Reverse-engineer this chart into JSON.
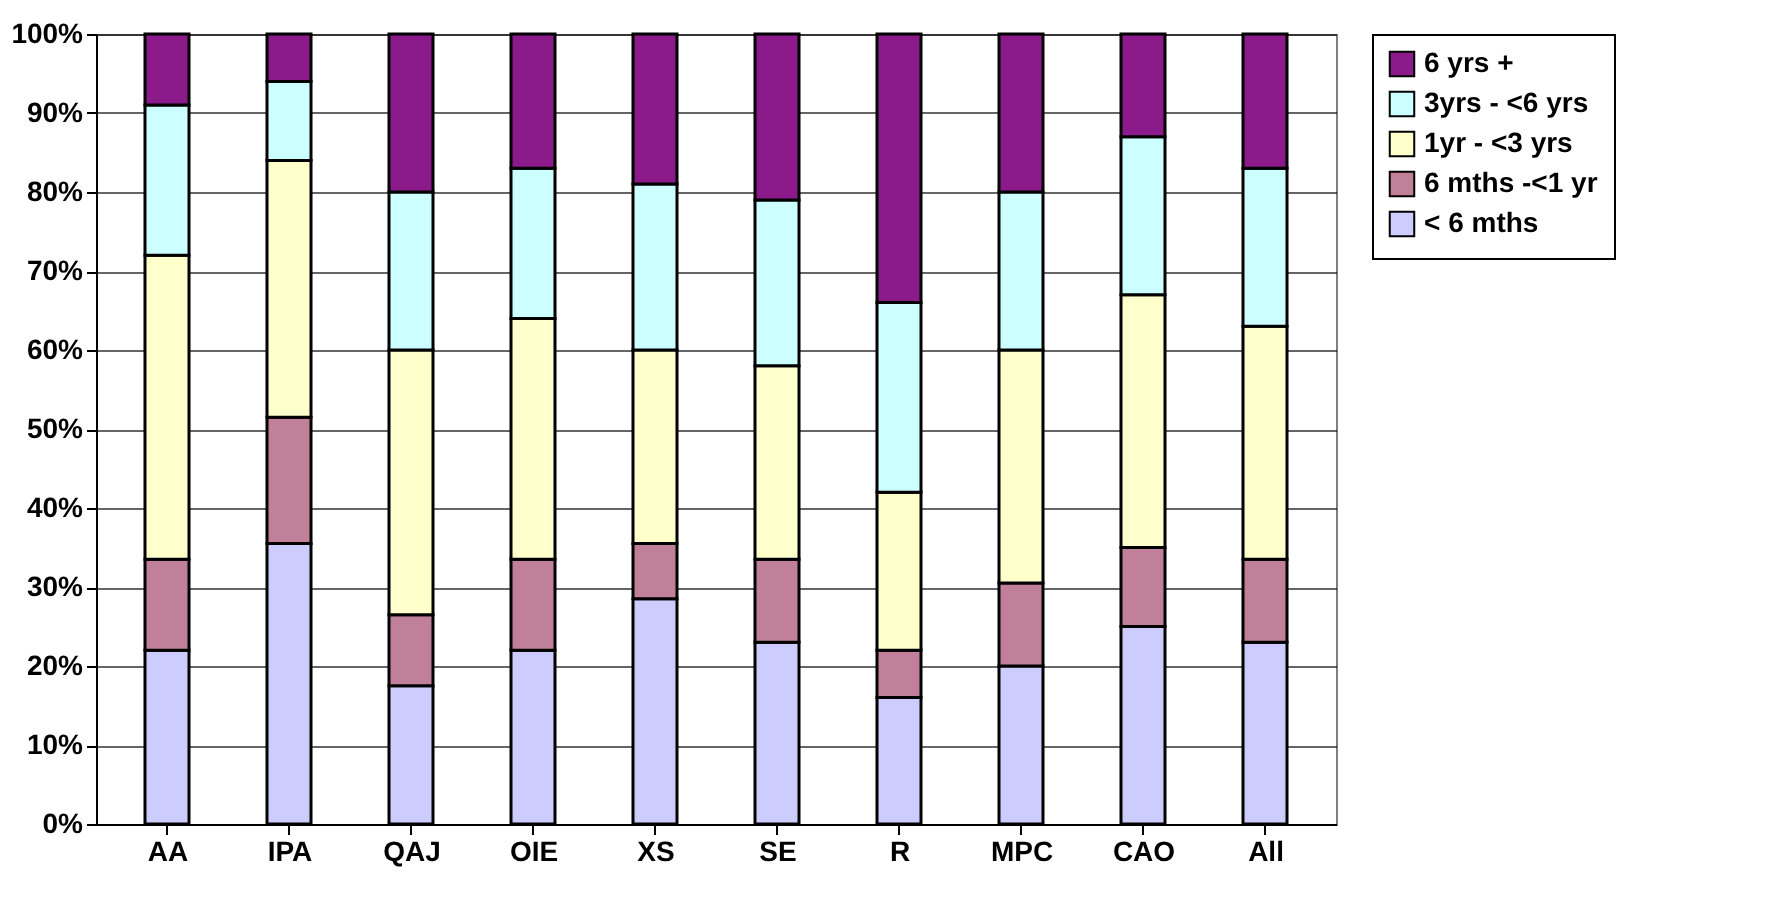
{
  "chart_data": {
    "type": "bar",
    "stacked": true,
    "categories": [
      "AA",
      "IPA",
      "QAJ",
      "OIE",
      "XS",
      "SE",
      "R",
      "MPC",
      "CAO",
      "All"
    ],
    "series": [
      {
        "name": "< 6 mths",
        "color": "#ccccff",
        "values": [
          22,
          35.5,
          17.5,
          22,
          28.5,
          23,
          16,
          20,
          25,
          23
        ]
      },
      {
        "name": "6 mths -<1 yr",
        "color": "#c0809a",
        "values": [
          11.5,
          16,
          9,
          11.5,
          7,
          10.5,
          6,
          10.5,
          10,
          10.5
        ]
      },
      {
        "name": "1yr - <3 yrs",
        "color": "#ffffcc",
        "values": [
          38.5,
          32.5,
          33.5,
          30.5,
          24.5,
          24.5,
          20,
          29.5,
          32,
          29.5
        ]
      },
      {
        "name": "3yrs - <6 yrs",
        "color": "#ccffff",
        "values": [
          19,
          10,
          20,
          19,
          21,
          21,
          24,
          20,
          20,
          20
        ]
      },
      {
        "name": "6 yrs +",
        "color": "#8b1a8b",
        "values": [
          9,
          6,
          20,
          17,
          19,
          21,
          34,
          20,
          13,
          17
        ]
      }
    ],
    "ylim": [
      0,
      100
    ],
    "yticks": [
      {
        "value": 0,
        "label": "0%"
      },
      {
        "value": 10,
        "label": "10%"
      },
      {
        "value": 20,
        "label": "20%"
      },
      {
        "value": 30,
        "label": "30%"
      },
      {
        "value": 40,
        "label": "40%"
      },
      {
        "value": 50,
        "label": "50%"
      },
      {
        "value": 60,
        "label": "60%"
      },
      {
        "value": 70,
        "label": "70%"
      },
      {
        "value": 80,
        "label": "80%"
      },
      {
        "value": 90,
        "label": "90%"
      },
      {
        "value": 100,
        "label": "100%"
      }
    ],
    "grid": "y",
    "legend": "right"
  }
}
